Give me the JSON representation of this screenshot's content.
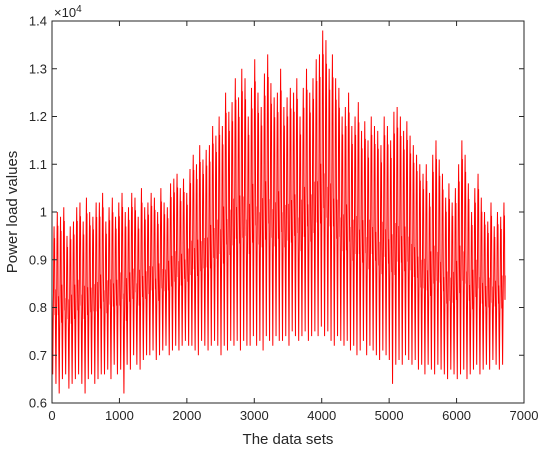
{
  "chart_data": {
    "type": "line",
    "title": "",
    "xlabel": "The data sets",
    "ylabel": "Power load values",
    "y_multiplier_label": "×10",
    "y_multiplier_exponent": "4",
    "xlim": [
      0,
      7000
    ],
    "ylim": [
      0.6,
      1.4
    ],
    "grid": false,
    "legend": "none",
    "line_color": "#ff0000",
    "x_ticks": [
      0,
      1000,
      2000,
      3000,
      4000,
      5000,
      6000,
      7000
    ],
    "x_tick_labels": [
      "0",
      "1000",
      "2000",
      "3000",
      "4000",
      "5000",
      "6000",
      "7000"
    ],
    "y_ticks": [
      0.6,
      0.7,
      0.8,
      0.9,
      1.0,
      1.1,
      1.2,
      1.3,
      1.4
    ],
    "y_tick_labels": [
      "0.6",
      "0.7",
      "0.8",
      "0.9",
      "1",
      "1.1",
      "1.2",
      "1.3",
      "1.4"
    ],
    "series": [
      {
        "x_start": 0,
        "x_end": 6720,
        "x_step": 48,
        "daily_peaks": [
          0.97,
          1.0,
          0.99,
          1.01,
          0.95,
          0.97,
          0.98,
          1.01,
          1.02,
          0.98,
          1.03,
          1.0,
          0.99,
          1.02,
          1.02,
          1.04,
          0.98,
          1.01,
          1.03,
          0.99,
          1.02,
          1.04,
          1.0,
          1.01,
          1.04,
          1.03,
          0.99,
          1.05,
          1.01,
          1.02,
          1.04,
          1.03,
          1.0,
          1.05,
          1.02,
          1.01,
          1.06,
          1.07,
          1.08,
          1.05,
          1.07,
          1.04,
          1.09,
          1.12,
          1.1,
          1.14,
          1.11,
          1.13,
          1.14,
          1.18,
          1.16,
          1.2,
          1.18,
          1.25,
          1.21,
          1.23,
          1.28,
          1.24,
          1.3,
          1.28,
          1.2,
          1.26,
          1.32,
          1.25,
          1.22,
          1.29,
          1.33,
          1.27,
          1.24,
          1.25,
          1.3,
          1.22,
          1.24,
          1.26,
          1.25,
          1.28,
          1.2,
          1.26,
          1.3,
          1.25,
          1.28,
          1.32,
          1.33,
          1.38,
          1.36,
          1.3,
          1.33,
          1.28,
          1.26,
          1.2,
          1.22,
          1.25,
          1.18,
          1.2,
          1.23,
          1.17,
          1.19,
          1.15,
          1.2,
          1.18,
          1.17,
          1.14,
          1.2,
          1.18,
          1.15,
          1.21,
          1.22,
          1.2,
          1.17,
          1.19,
          1.16,
          1.14,
          1.12,
          1.1,
          1.08,
          1.1,
          1.04,
          1.12,
          1.15,
          1.11,
          1.08,
          1.03,
          1.06,
          1.02,
          1.05,
          1.1,
          1.15,
          1.12,
          1.06,
          1.0,
          1.05,
          1.08,
          1.03,
          1.0,
          0.98,
          1.02,
          0.97,
          1.0,
          0.99,
          1.02
        ],
        "daily_troughs": [
          0.66,
          0.64,
          0.62,
          0.65,
          0.66,
          0.63,
          0.64,
          0.65,
          0.66,
          0.64,
          0.62,
          0.65,
          0.66,
          0.64,
          0.65,
          0.66,
          0.66,
          0.67,
          0.65,
          0.68,
          0.66,
          0.67,
          0.62,
          0.68,
          0.67,
          0.7,
          0.68,
          0.67,
          0.69,
          0.7,
          0.7,
          0.71,
          0.69,
          0.7,
          0.71,
          0.72,
          0.7,
          0.71,
          0.72,
          0.71,
          0.72,
          0.73,
          0.72,
          0.72,
          0.71,
          0.7,
          0.73,
          0.72,
          0.71,
          0.72,
          0.73,
          0.72,
          0.7,
          0.72,
          0.71,
          0.73,
          0.72,
          0.73,
          0.71,
          0.73,
          0.72,
          0.72,
          0.74,
          0.72,
          0.73,
          0.71,
          0.74,
          0.73,
          0.72,
          0.74,
          0.73,
          0.73,
          0.74,
          0.72,
          0.75,
          0.74,
          0.73,
          0.74,
          0.75,
          0.73,
          0.74,
          0.75,
          0.74,
          0.76,
          0.74,
          0.75,
          0.73,
          0.72,
          0.74,
          0.73,
          0.72,
          0.73,
          0.71,
          0.72,
          0.7,
          0.71,
          0.73,
          0.7,
          0.72,
          0.71,
          0.7,
          0.69,
          0.71,
          0.7,
          0.69,
          0.64,
          0.68,
          0.69,
          0.68,
          0.7,
          0.69,
          0.68,
          0.69,
          0.67,
          0.68,
          0.66,
          0.68,
          0.67,
          0.66,
          0.68,
          0.67,
          0.66,
          0.65,
          0.67,
          0.66,
          0.65,
          0.66,
          0.67,
          0.65,
          0.66,
          0.67,
          0.68,
          0.66,
          0.67,
          0.68,
          0.67,
          0.69,
          0.68,
          0.67,
          0.68
        ]
      }
    ]
  }
}
